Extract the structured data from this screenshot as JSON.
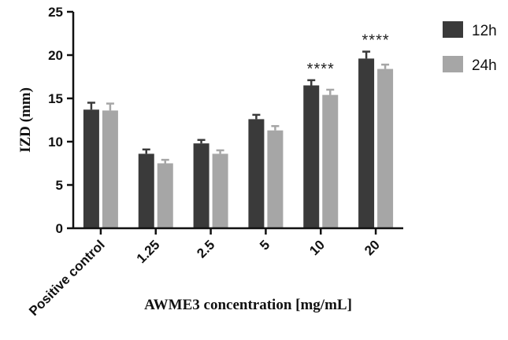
{
  "chart_data": {
    "type": "bar",
    "xlabel": "AWME3 concentration [mg/mL]",
    "ylabel": "IZD (mm)",
    "categories": [
      "Positive control",
      "1.25",
      "2.5",
      "5",
      "10",
      "20"
    ],
    "ylim": [
      0,
      25
    ],
    "yticks": [
      "0",
      "5",
      "10",
      "15",
      "20",
      "25"
    ],
    "series": [
      {
        "name": "12h",
        "color": "#3a3a3a",
        "values": [
          13.7,
          8.6,
          9.8,
          12.6,
          16.5,
          19.6
        ],
        "errors": [
          0.8,
          0.5,
          0.4,
          0.5,
          0.6,
          0.8
        ]
      },
      {
        "name": "24h",
        "color": "#a6a6a6",
        "values": [
          13.6,
          7.5,
          8.6,
          11.3,
          15.4,
          18.4
        ],
        "errors": [
          0.8,
          0.4,
          0.4,
          0.5,
          0.6,
          0.5
        ]
      }
    ],
    "annotations": [
      {
        "category": "10",
        "text": "****"
      },
      {
        "category": "20",
        "text": "****"
      }
    ],
    "legend_position": "top-right",
    "grid": false
  }
}
